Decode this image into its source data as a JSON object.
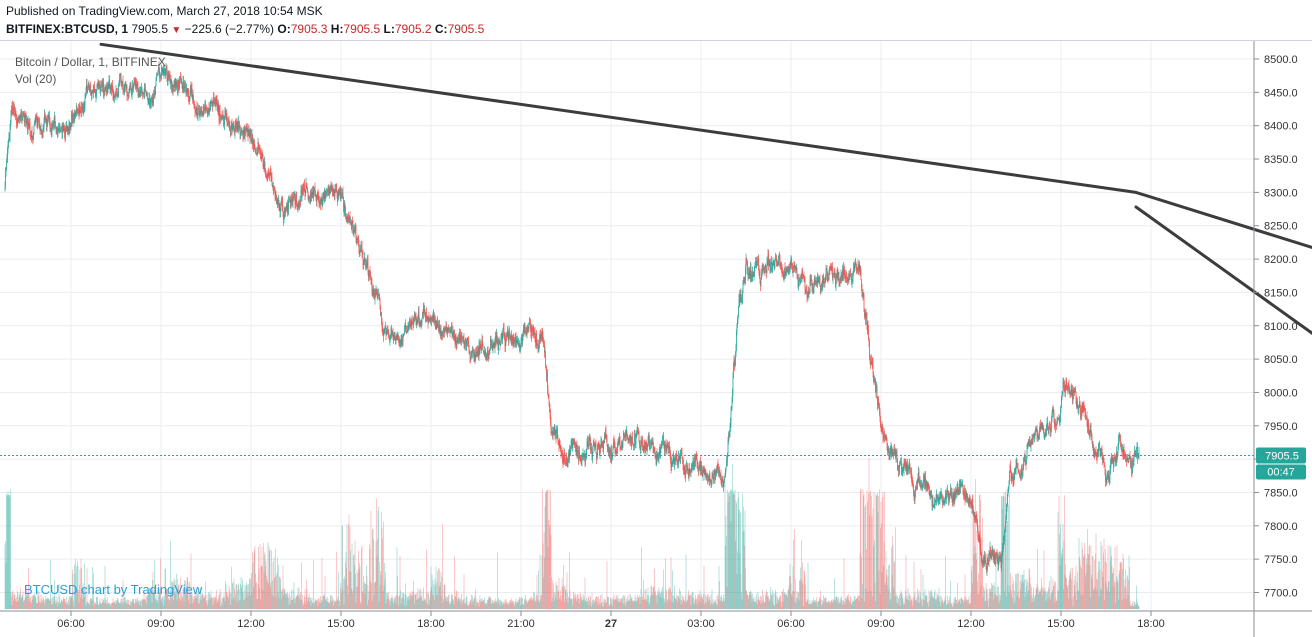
{
  "header": {
    "published": "Published on TradingView.com, March 27, 2018 10:54 MSK",
    "symbol": "BITFINEX:BTCUSD, 1",
    "last": "7905.5",
    "change": "−225.6 (−2.77%)",
    "o_label": "O:",
    "o_value": "7905.3",
    "h_label": "H:",
    "h_value": "7905.5",
    "l_label": "L:",
    "l_value": "7905.2",
    "c_label": "C:",
    "c_value": "7905.5"
  },
  "legend": {
    "series_title": "Bitcoin / Dollar, 1, BITFINEX",
    "volume_title": "Vol (20)"
  },
  "attribution": "BTCUSD chart by TradingView",
  "chart_data": {
    "type": "line",
    "title": "Bitcoin / Dollar, 1, BITFINEX",
    "x_ticks": [
      "06:00",
      "09:00",
      "12:00",
      "15:00",
      "18:00",
      "21:00",
      "27",
      "03:00",
      "06:00",
      "09:00",
      "12:00",
      "15:00",
      "18:00"
    ],
    "y_ticks": [
      7700,
      7750,
      7800,
      7850,
      7900,
      7950,
      8000,
      8050,
      8100,
      8150,
      8200,
      8250,
      8300,
      8350,
      8400,
      8450,
      8500
    ],
    "y_tick_labels": [
      "7700.0",
      "7750.0",
      "7800.0",
      "7850.0",
      "7900.0",
      "7950.0",
      "8000.0",
      "8050.0",
      "8100.0",
      "8150.0",
      "8200.0",
      "8250.0",
      "8300.0",
      "8350.0",
      "8400.0",
      "8450.0",
      "8500.0"
    ],
    "ylim": [
      7678,
      8512
    ],
    "x_start_hour": 3.8,
    "x_end_hour": 41.6,
    "price_path": [
      [
        3.8,
        8310
      ],
      [
        4.0,
        8420
      ],
      [
        5.0,
        8400
      ],
      [
        6.0,
        8410
      ],
      [
        6.5,
        8450
      ],
      [
        7.5,
        8455
      ],
      [
        8.5,
        8450
      ],
      [
        9.3,
        8470
      ],
      [
        10.0,
        8440
      ],
      [
        11.0,
        8420
      ],
      [
        12.0,
        8380
      ],
      [
        12.5,
        8330
      ],
      [
        13.0,
        8280
      ],
      [
        14.0,
        8300
      ],
      [
        15.0,
        8290
      ],
      [
        15.5,
        8220
      ],
      [
        16.0,
        8170
      ],
      [
        16.5,
        8080
      ],
      [
        17.5,
        8100
      ],
      [
        18.0,
        8110
      ],
      [
        18.5,
        8080
      ],
      [
        19.0,
        8070
      ],
      [
        20.0,
        8080
      ],
      [
        21.0,
        8085
      ],
      [
        21.7,
        8075
      ],
      [
        22.0,
        7940
      ],
      [
        22.5,
        7920
      ],
      [
        23.0,
        7910
      ],
      [
        24.0,
        7920
      ],
      [
        25.0,
        7930
      ],
      [
        26.0,
        7900
      ],
      [
        27.0,
        7880
      ],
      [
        27.8,
        7870
      ],
      [
        28.2,
        8100
      ],
      [
        28.5,
        8190
      ],
      [
        29.0,
        8180
      ],
      [
        29.9,
        8200
      ],
      [
        30.5,
        8160
      ],
      [
        31.5,
        8170
      ],
      [
        32.3,
        8180
      ],
      [
        32.7,
        8040
      ],
      [
        33.2,
        7920
      ],
      [
        33.5,
        7880
      ],
      [
        34.0,
        7870
      ],
      [
        35.0,
        7850
      ],
      [
        36.0,
        7840
      ],
      [
        36.4,
        7760
      ],
      [
        37.0,
        7740
      ],
      [
        37.3,
        7880
      ],
      [
        38.0,
        7920
      ],
      [
        38.9,
        7960
      ],
      [
        39.2,
        8020
      ],
      [
        39.6,
        7990
      ],
      [
        40.0,
        7940
      ],
      [
        40.5,
        7880
      ],
      [
        41.0,
        7930
      ],
      [
        41.3,
        7905
      ]
    ],
    "trendlines": [
      [
        [
          7.0,
          8522
        ],
        [
          41.5,
          8300
        ],
        [
          54.5,
          8117
        ]
      ],
      [
        [
          41.5,
          8278
        ],
        [
          52.7,
          7917
        ]
      ]
    ],
    "last_price": 7905.5,
    "last_price_label": "7905.5",
    "countdown": "00:47",
    "colors": {
      "up": "#26a69a",
      "down": "#ef5350",
      "price_label_bg": "#26a69a",
      "trendline": "#3c3c3c",
      "grid": "#e9ecf1"
    }
  }
}
